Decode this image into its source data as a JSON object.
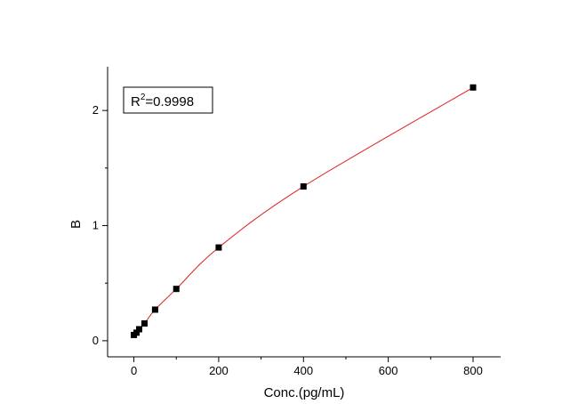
{
  "chart_data": {
    "type": "scatter",
    "title": "",
    "xlabel": "Conc.(pg/mL)",
    "ylabel": "B",
    "xlim": [
      -62,
      865
    ],
    "ylim": [
      -0.14,
      2.38
    ],
    "x_ticks": [
      0,
      200,
      400,
      600,
      800
    ],
    "y_ticks": [
      0,
      1,
      2
    ],
    "grid": false,
    "legend": "none",
    "annotation": {
      "prefix": "R",
      "superscript": "2",
      "value": "=0.9998"
    },
    "series": [
      {
        "marker": "square",
        "color": "#000000",
        "points": [
          {
            "x": 0,
            "y": 0.05
          },
          {
            "x": 6.25,
            "y": 0.07
          },
          {
            "x": 12.5,
            "y": 0.1
          },
          {
            "x": 25,
            "y": 0.15
          },
          {
            "x": 50,
            "y": 0.27
          },
          {
            "x": 100,
            "y": 0.45
          },
          {
            "x": 200,
            "y": 0.81
          },
          {
            "x": 400,
            "y": 1.34
          },
          {
            "x": 800,
            "y": 2.2
          }
        ]
      }
    ],
    "fit_curve": {
      "color": "#e02020",
      "type": "smooth"
    }
  }
}
